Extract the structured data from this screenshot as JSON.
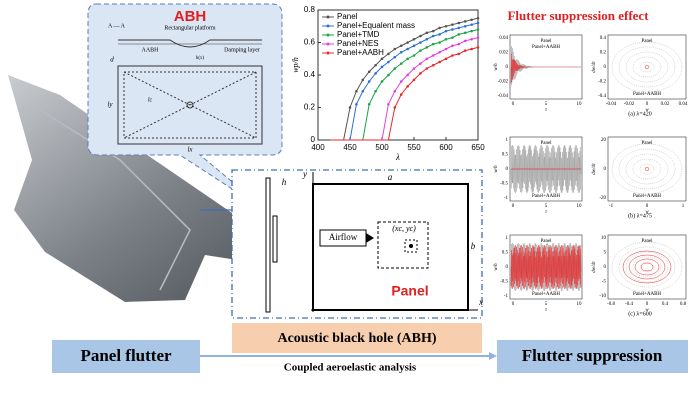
{
  "abh": {
    "title": "ABH",
    "section": "A — A",
    "platform": "Rectangular platform",
    "aabh": "AABH",
    "damping": "Damping layer",
    "hx": "h(x)",
    "d": "d",
    "lx": "lx",
    "ly": "ly",
    "lc": "lc"
  },
  "chart": {
    "type": "line",
    "xlabel": "λ",
    "ylabel": "wp/h",
    "xlim": [
      400,
      650
    ],
    "ylim": [
      0,
      0.8
    ],
    "xticks": [
      400,
      450,
      500,
      550,
      600,
      650
    ],
    "yticks": [
      0,
      0.2,
      0.4,
      0.6,
      0.8
    ],
    "x": [
      420,
      430,
      440,
      450,
      460,
      470,
      480,
      490,
      500,
      510,
      520,
      530,
      540,
      550,
      560,
      570,
      580,
      590,
      600,
      610,
      620,
      630,
      640,
      650
    ],
    "series": [
      {
        "name": "Panel",
        "color": "#555555",
        "values": [
          0,
          0,
          0,
          0.2,
          0.3,
          0.37,
          0.42,
          0.46,
          0.5,
          0.53,
          0.56,
          0.58,
          0.6,
          0.62,
          0.64,
          0.66,
          0.67,
          0.69,
          0.7,
          0.71,
          0.72,
          0.73,
          0.74,
          0.75
        ]
      },
      {
        "name": "Panel+Equalent mass",
        "color": "#2b6fd6",
        "values": [
          0,
          0,
          0,
          0,
          0.22,
          0.3,
          0.36,
          0.41,
          0.45,
          0.48,
          0.51,
          0.54,
          0.56,
          0.58,
          0.6,
          0.62,
          0.64,
          0.65,
          0.67,
          0.68,
          0.69,
          0.7,
          0.71,
          0.72
        ]
      },
      {
        "name": "Panel+TMD",
        "color": "#1aa34a",
        "values": [
          0,
          0,
          0,
          0,
          0,
          0,
          0.22,
          0.3,
          0.36,
          0.4,
          0.44,
          0.47,
          0.5,
          0.52,
          0.55,
          0.57,
          0.59,
          0.6,
          0.62,
          0.63,
          0.65,
          0.66,
          0.67,
          0.68
        ]
      },
      {
        "name": "Panel+NES",
        "color": "#e040e0",
        "values": [
          0,
          0,
          0,
          0,
          0,
          0,
          0,
          0,
          0,
          0.22,
          0.3,
          0.36,
          0.4,
          0.44,
          0.47,
          0.5,
          0.52,
          0.54,
          0.56,
          0.58,
          0.59,
          0.61,
          0.62,
          0.63
        ]
      },
      {
        "name": "Panel+AABH",
        "color": "#e8282b",
        "values": [
          0,
          0,
          0,
          0,
          0,
          0,
          0,
          0,
          0,
          0,
          0.2,
          0.28,
          0.33,
          0.37,
          0.41,
          0.44,
          0.46,
          0.48,
          0.5,
          0.52,
          0.53,
          0.55,
          0.56,
          0.57
        ]
      }
    ]
  },
  "panel": {
    "title": "Panel",
    "airflow": "Airflow",
    "a": "a",
    "b": "b",
    "h": "h",
    "point": "(xc, yc)",
    "x": "x",
    "y": "y"
  },
  "suppression": {
    "title": "Flutter suppression effect",
    "rows": [
      {
        "caption": "(a) λ=420",
        "time": {
          "ylabel": "w/h",
          "xlabel": "τ",
          "yticks": [
            "0.04",
            "0.02",
            "0",
            "-0.02",
            "-0.04"
          ],
          "xticks": [
            "0",
            "5",
            "10"
          ],
          "legend": [
            "Panel",
            "Panel+AABH"
          ]
        },
        "phase": {
          "ylabel": "dw/dτ",
          "xlabel": "w",
          "yticks": [
            "0.4",
            "0.2",
            "0",
            "-0.2",
            "-0.4"
          ],
          "xticks": [
            "-0.04",
            "-0.02",
            "0",
            "0.02",
            "0.04"
          ],
          "legend": [
            "Panel",
            "Panel+AABH"
          ]
        }
      },
      {
        "caption": "(b) λ=475",
        "time": {
          "ylabel": "w/h",
          "xlabel": "τ",
          "yticks": [
            "1",
            "0.5",
            "0",
            "-0.5",
            "-1"
          ],
          "xticks": [
            "0",
            "5",
            "10"
          ],
          "legend": [
            "Panel",
            "Panel+AABH"
          ]
        },
        "phase": {
          "ylabel": "dw/dτ",
          "xlabel": "w",
          "yticks": [
            "20",
            "0",
            "-20"
          ],
          "xticks": [
            "-1",
            "0",
            "1"
          ],
          "legend": [
            "Panel",
            "Panel+AABH"
          ]
        }
      },
      {
        "caption": "(c) λ=600",
        "time": {
          "ylabel": "w/h",
          "xlabel": "τ",
          "yticks": [
            "1",
            "0.5",
            "0",
            "-0.5",
            "-1"
          ],
          "xticks": [
            "0",
            "5",
            "10"
          ],
          "legend": [
            "Panel",
            "Panel+AABH"
          ]
        },
        "phase": {
          "ylabel": "dw/dτ",
          "xlabel": "w",
          "yticks": [
            "10",
            "5",
            "0",
            "-5",
            "-10"
          ],
          "xticks": [
            "-0.8",
            "-0.4",
            "0",
            "0.4",
            "0.8"
          ],
          "legend": [
            "Panel",
            "Panel+AABH"
          ]
        }
      }
    ]
  },
  "banner": {
    "left": "Panel flutter",
    "center": "Acoustic black hole (ABH)",
    "subtitle": "Coupled aeroelastic analysis",
    "right": "Flutter suppression"
  }
}
